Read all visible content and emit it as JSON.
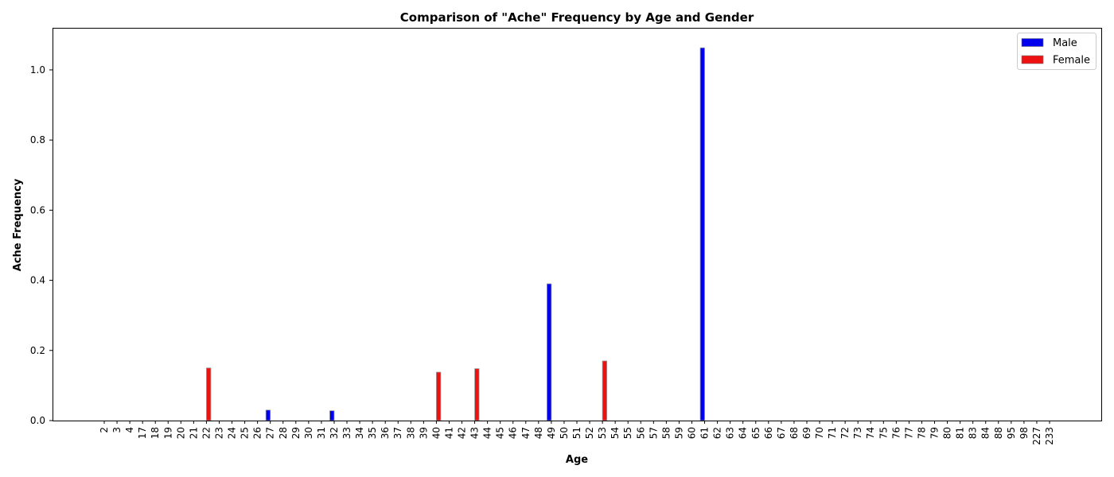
{
  "chart_data": {
    "type": "bar",
    "title": "Comparison of \"Ache\" Frequency by Age and Gender",
    "xlabel": "Age",
    "ylabel": "Ache Frequency",
    "ylim": [
      0,
      1.12
    ],
    "yticks": [
      "0.0",
      "0.2",
      "0.4",
      "0.6",
      "0.8",
      "1.0"
    ],
    "grid": false,
    "legend_position": "top-right",
    "categories": [
      "2",
      "3",
      "4",
      "17",
      "18",
      "19",
      "20",
      "21",
      "22",
      "23",
      "24",
      "25",
      "26",
      "27",
      "28",
      "29",
      "30",
      "31",
      "32",
      "33",
      "34",
      "35",
      "36",
      "37",
      "38",
      "39",
      "40",
      "41",
      "42",
      "43",
      "44",
      "45",
      "46",
      "47",
      "48",
      "49",
      "50",
      "51",
      "52",
      "53",
      "54",
      "55",
      "56",
      "57",
      "58",
      "59",
      "60",
      "61",
      "62",
      "63",
      "64",
      "65",
      "66",
      "67",
      "68",
      "69",
      "70",
      "71",
      "72",
      "73",
      "74",
      "75",
      "76",
      "77",
      "78",
      "79",
      "80",
      "81",
      "83",
      "84",
      "88",
      "95",
      "98",
      "227",
      "233"
    ],
    "series": [
      {
        "name": "Male",
        "color": "#0000ee",
        "values": [
          0,
          0,
          0,
          0,
          0,
          0,
          0,
          0,
          0,
          0,
          0,
          0,
          0,
          0.03,
          0,
          0,
          0,
          0,
          0.028,
          0,
          0,
          0,
          0,
          0,
          0,
          0,
          0,
          0,
          0,
          0,
          0,
          0,
          0,
          0,
          0,
          0.39,
          0,
          0,
          0,
          0,
          0,
          0,
          0,
          0,
          0,
          0,
          0,
          1.063,
          0,
          0,
          0,
          0,
          0,
          0,
          0,
          0,
          0,
          0,
          0,
          0,
          0,
          0,
          0,
          0,
          0,
          0,
          0,
          0,
          0,
          0,
          0,
          0,
          0,
          0,
          0
        ]
      },
      {
        "name": "Female",
        "color": "#ee1111",
        "values": [
          0,
          0,
          0,
          0,
          0,
          0,
          0,
          0,
          0.15,
          0,
          0,
          0,
          0,
          0,
          0,
          0,
          0,
          0,
          0,
          0,
          0,
          0,
          0,
          0,
          0,
          0,
          0.138,
          0,
          0,
          0.148,
          0,
          0,
          0,
          0,
          0,
          0,
          0,
          0,
          0,
          0.17,
          0,
          0,
          0,
          0,
          0,
          0,
          0,
          0,
          0,
          0,
          0,
          0,
          0,
          0,
          0,
          0,
          0,
          0,
          0,
          0,
          0,
          0,
          0,
          0,
          0,
          0,
          0,
          0,
          0,
          0,
          0,
          0,
          0,
          0,
          0
        ]
      }
    ]
  }
}
